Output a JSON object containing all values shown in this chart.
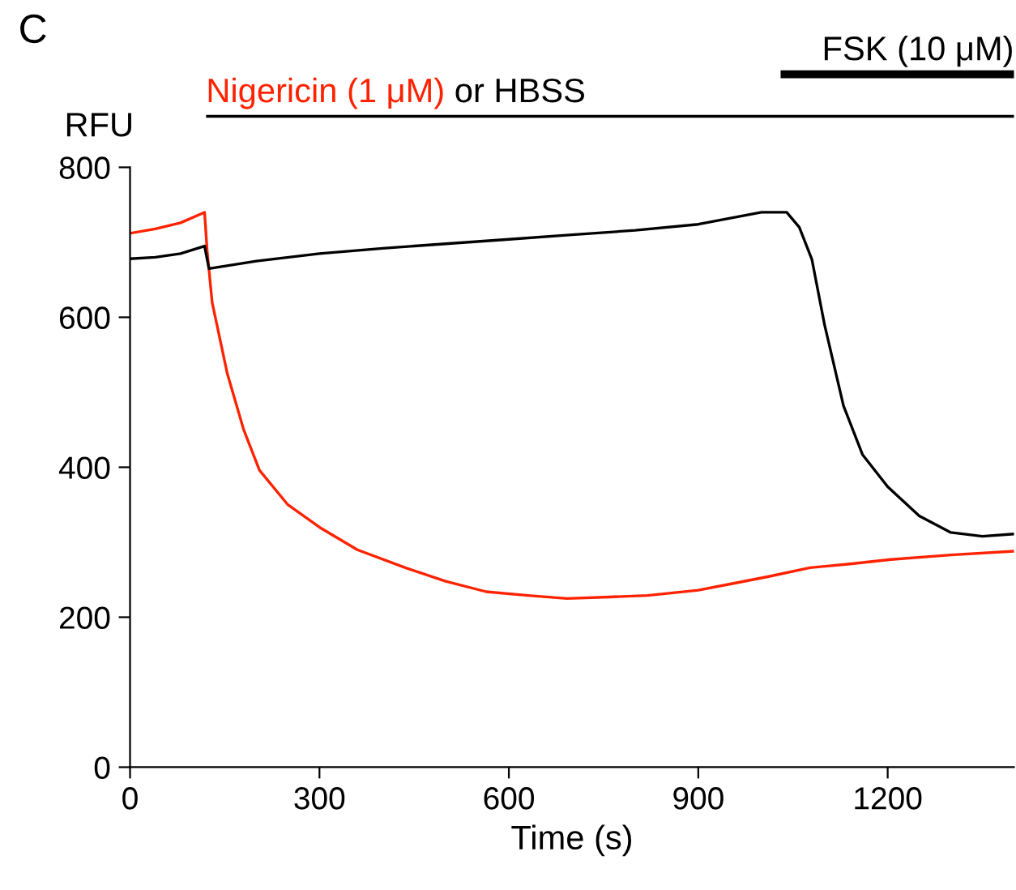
{
  "chart_data": {
    "type": "line",
    "ylabel": "RFU",
    "xlabel": "Time (s)",
    "annotations": [
      "C",
      "Nigericin (1 μM)",
      "or HBSS",
      "FSK (10 μM)"
    ],
    "xlim": [
      0,
      1400
    ],
    "xticks": [
      0,
      300,
      600,
      900,
      1200
    ],
    "ylim": [
      0,
      800
    ],
    "yticks": [
      0,
      200,
      400,
      600,
      800
    ],
    "grid": false,
    "legend": false,
    "marker": "none",
    "line_style": "solid",
    "series": [
      {
        "color": "#ff2200",
        "x": [
          0,
          40,
          80,
          118,
          122,
          130,
          154,
          180,
          205,
          250,
          300,
          360,
          436,
          500,
          564,
          630,
          692,
          760,
          820,
          900,
          949,
          1010,
          1077,
          1140,
          1205,
          1300,
          1400
        ],
        "values": [
          712,
          718,
          726,
          740,
          690,
          620,
          525,
          450,
          396,
          350,
          320,
          290,
          266,
          248,
          234,
          229,
          225,
          227,
          229,
          236,
          244,
          254,
          266,
          271,
          277,
          283,
          288
        ]
      },
      {
        "color": "#000000",
        "x": [
          0,
          40,
          80,
          118,
          125,
          200,
          300,
          400,
          500,
          600,
          700,
          800,
          900,
          1000,
          1040,
          1060,
          1080,
          1100,
          1130,
          1160,
          1200,
          1250,
          1300,
          1350,
          1400
        ],
        "values": [
          678,
          680,
          685,
          695,
          665,
          675,
          685,
          692,
          698,
          704,
          710,
          716,
          724,
          740,
          740,
          720,
          677,
          590,
          482,
          417,
          374,
          335,
          313,
          308,
          311
        ]
      }
    ]
  }
}
